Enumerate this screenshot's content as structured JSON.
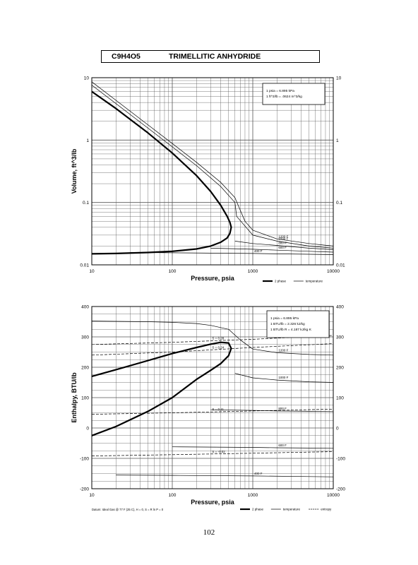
{
  "header": {
    "formula": "C9H4O5",
    "name": "TRIMELLITIC ANHYDRIDE"
  },
  "page_number": "102",
  "colors": {
    "ink": "#000000",
    "grid": "#555555",
    "paper": "#ffffff"
  },
  "chart_data": [
    {
      "type": "line",
      "ylabel": "Volume, ft^3/lb",
      "xlabel": "Pressure,  psia",
      "xscale": "log",
      "yscale": "log",
      "xlim": [
        10,
        10000
      ],
      "ylim": [
        0.01,
        10
      ],
      "x_ticks": [
        "10",
        "100",
        "1000",
        "10000"
      ],
      "y_ticks": [
        "0.01",
        "0.1",
        "1",
        "10"
      ],
      "note_lines": [
        "1 psia  =  6.895 kPa",
        "1 ft^3/lb  =  .0624 m^3/kg"
      ],
      "legend": [
        {
          "label": "2 phase",
          "style": "thick"
        },
        {
          "label": "temperature",
          "style": "thin"
        }
      ],
      "isotherm_labels": [
        "1200 F",
        "1000 F",
        "800 F",
        "600 F",
        "400 F"
      ],
      "series": [
        {
          "name": "2 phase",
          "style": "thick",
          "x": [
            10,
            20,
            50,
            100,
            200,
            300,
            400,
            480,
            520,
            540,
            520,
            480,
            400,
            300,
            200,
            100,
            50,
            20,
            10
          ],
          "y": [
            6,
            3.2,
            1.3,
            0.62,
            0.27,
            0.15,
            0.09,
            0.06,
            0.048,
            0.04,
            0.032,
            0.027,
            0.023,
            0.02,
            0.018,
            0.0165,
            0.0158,
            0.0152,
            0.015
          ]
        },
        {
          "name": "1200 F",
          "style": "thin",
          "x": [
            10,
            50,
            100,
            200,
            400,
            600,
            700,
            800,
            1000,
            2000,
            5000,
            10000
          ],
          "y": [
            8.6,
            1.75,
            0.88,
            0.44,
            0.21,
            0.12,
            0.075,
            0.05,
            0.036,
            0.026,
            0.022,
            0.02
          ]
        },
        {
          "name": "1000 F",
          "style": "thin",
          "x": [
            10,
            50,
            100,
            200,
            400,
            600,
            630,
            1000,
            2000,
            5000,
            10000
          ],
          "y": [
            7.6,
            1.55,
            0.78,
            0.39,
            0.18,
            0.1,
            0.06,
            0.03,
            0.024,
            0.02,
            0.0185
          ]
        },
        {
          "name": "800 F",
          "style": "thin",
          "x": [
            600,
            1000,
            2000,
            5000,
            10000
          ],
          "y": [
            0.024,
            0.022,
            0.0205,
            0.0185,
            0.0175
          ]
        },
        {
          "name": "600 F",
          "style": "thin",
          "x": [
            300,
            1000,
            2000,
            5000,
            10000
          ],
          "y": [
            0.0185,
            0.0178,
            0.0172,
            0.0165,
            0.016
          ]
        },
        {
          "name": "400 F",
          "style": "thin",
          "x": [
            30,
            100,
            1000,
            5000,
            10000
          ],
          "y": [
            0.0158,
            0.0156,
            0.0152,
            0.0148,
            0.0146
          ]
        }
      ]
    },
    {
      "type": "line",
      "ylabel": "Enthalpy, BTU/lb",
      "xlabel": "Pressure,  psia",
      "xscale": "log",
      "xlim": [
        10,
        10000
      ],
      "ylim": [
        -200,
        400
      ],
      "x_ticks": [
        "10",
        "100",
        "1000",
        "10000"
      ],
      "y_ticks": [
        "-200",
        "-100",
        "0",
        "100",
        "200",
        "300",
        "400"
      ],
      "note_lines": [
        "1 psia  =  6.895 kPa",
        "1 BTU/lb  =  2.326 kJ/kg",
        "1 BTU/lb R  =  4.187 kJ/kg K"
      ],
      "legend": [
        {
          "label": "2 phase",
          "style": "thick"
        },
        {
          "label": "temperature",
          "style": "thin"
        },
        {
          "label": "entropy",
          "style": "dash"
        }
      ],
      "datum": "Datum: Ideal Gas @ 77 F (25 C),  H = 0,  S = R ln P = 0",
      "isotherm_labels": [
        "1200 F",
        "1000 F",
        "800 F",
        "600 F",
        "400 F"
      ],
      "entropy_labels": [
        "S = 0.28",
        "S = 0.24",
        "S = 0.24",
        "S = 0.11",
        "S = -0.02"
      ],
      "series": [
        {
          "name": "2 phase",
          "style": "thick",
          "x": [
            10,
            20,
            50,
            100,
            200,
            300,
            400,
            500,
            540,
            500,
            400,
            300,
            200,
            100,
            50,
            20,
            10
          ],
          "y": [
            170,
            192,
            222,
            245,
            265,
            276,
            282,
            280,
            262,
            238,
            212,
            190,
            160,
            100,
            55,
            5,
            -25
          ]
        },
        {
          "name": "1200 F",
          "style": "thin",
          "x": [
            10,
            50,
            100,
            200,
            300,
            500,
            700,
            1000,
            2000,
            5000,
            10000
          ],
          "y": [
            352,
            350,
            348,
            344,
            338,
            325,
            290,
            260,
            248,
            242,
            240
          ]
        },
        {
          "name": "1000 F",
          "style": "thin",
          "x": [
            600,
            1000,
            2000,
            5000,
            10000
          ],
          "y": [
            180,
            165,
            158,
            152,
            150
          ]
        },
        {
          "name": "800 F",
          "style": "thin",
          "x": [
            300,
            1000,
            2000,
            5000,
            10000
          ],
          "y": [
            60,
            58,
            56,
            55,
            54
          ]
        },
        {
          "name": "600 F",
          "style": "thin",
          "x": [
            100,
            1000,
            2000,
            5000,
            10000
          ],
          "y": [
            -62,
            -64,
            -65,
            -66,
            -67
          ]
        },
        {
          "name": "400 F",
          "style": "thin",
          "x": [
            20,
            100,
            1000,
            5000,
            10000
          ],
          "y": [
            -155,
            -156,
            -158,
            -160,
            -161
          ]
        },
        {
          "name": "S = 0.28",
          "style": "dash",
          "x": [
            10,
            100,
            1000,
            10000
          ],
          "y": [
            275,
            282,
            292,
            305
          ]
        },
        {
          "name": "S = 0.24",
          "style": "dash",
          "x": [
            10,
            100,
            1000,
            10000
          ],
          "y": [
            240,
            250,
            265,
            278
          ]
        },
        {
          "name": "S = 0.11",
          "style": "dash",
          "x": [
            10,
            100,
            1000,
            10000
          ],
          "y": [
            45,
            50,
            56,
            62
          ]
        },
        {
          "name": "S = -0.02",
          "style": "dash",
          "x": [
            10,
            100,
            1000,
            10000
          ],
          "y": [
            -92,
            -88,
            -83,
            -78
          ]
        }
      ]
    }
  ]
}
